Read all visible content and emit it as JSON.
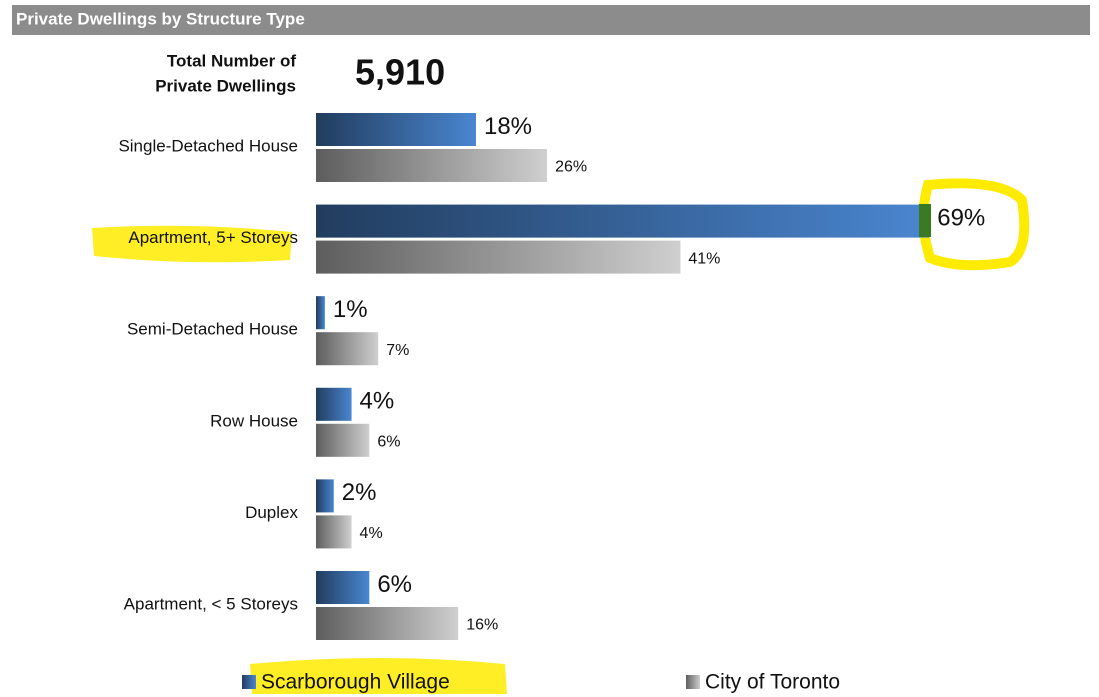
{
  "chart_data": {
    "type": "bar",
    "orientation": "horizontal",
    "title": "Private Dwellings by Structure Type",
    "total_label": [
      "Total Number of",
      "Private Dwellings"
    ],
    "total": {
      "value": 5910,
      "label": "5,910"
    },
    "categories": [
      "Single-Detached House",
      "Apartment, 5+ Storeys",
      "Semi-Detached House",
      "Row House",
      "Duplex",
      "Apartment, < 5 Storeys"
    ],
    "series": [
      {
        "name": "Scarborough Village",
        "color": "#4a86d0",
        "values": [
          18,
          69,
          1,
          4,
          2,
          6
        ],
        "value_labels": [
          "18%",
          "69%",
          "1%",
          "4%",
          "2%",
          "6%"
        ]
      },
      {
        "name": "City of Toronto",
        "color": "#cfcfcf",
        "values": [
          26,
          41,
          7,
          6,
          4,
          16
        ],
        "value_labels": [
          "26%",
          "41%",
          "7%",
          "6%",
          "4%",
          "16%"
        ]
      }
    ],
    "xlim": [
      0,
      80
    ]
  }
}
